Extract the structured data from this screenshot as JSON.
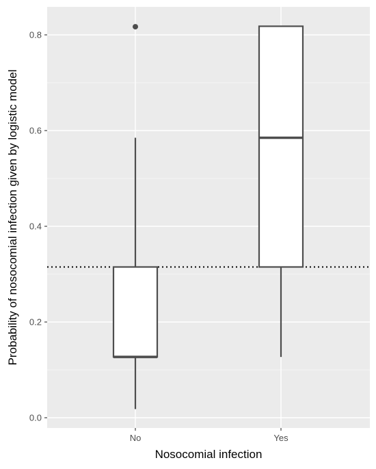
{
  "chart_data": {
    "type": "boxplot",
    "title": "",
    "xlabel": "Nosocomial infection",
    "ylabel": "Probability of nosocomial infection given by logistic model",
    "categories": [
      "No",
      "Yes"
    ],
    "ylim": [
      -0.025,
      0.86
    ],
    "yticks": [
      0.0,
      0.2,
      0.4,
      0.6,
      0.8
    ],
    "ytick_labels": [
      "0.0",
      "0.2",
      "0.4",
      "0.6",
      "0.8"
    ],
    "boxes": [
      {
        "category": "No",
        "whisker_low": 0.018,
        "q1": 0.127,
        "median": 0.127,
        "q3": 0.315,
        "whisker_high": 0.585,
        "outliers": [
          0.817
        ]
      },
      {
        "category": "Yes",
        "whisker_low": 0.127,
        "q1": 0.315,
        "median": 0.585,
        "q3": 0.818,
        "whisker_high": 0.818,
        "outliers": []
      }
    ],
    "reference_line": {
      "y": 0.315,
      "style": "dotted"
    },
    "grid": true,
    "panel_background": "#ebebeb",
    "box_fill": "#ffffff",
    "line_color": "#4d4d4d"
  }
}
